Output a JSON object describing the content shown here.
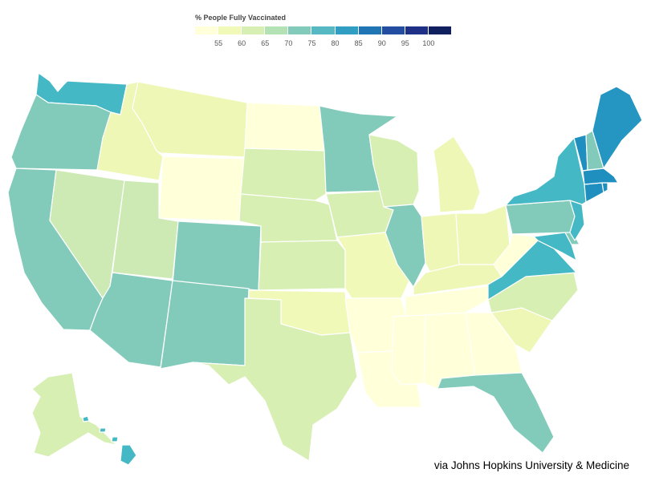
{
  "legend": {
    "title": "% People Fully Vaccinated",
    "ticks": [
      "55",
      "60",
      "65",
      "70",
      "75",
      "80",
      "85",
      "90",
      "95",
      "100"
    ],
    "color_scale": [
      "#ffffd9",
      "#f1f9b9",
      "#d7efb3",
      "#b4e2b5",
      "#82cbbb",
      "#55b8c3",
      "#2f9ec2",
      "#2076b4",
      "#234da0",
      "#1f3187",
      "#101f5e"
    ]
  },
  "credit": "via Johns Hopkins University & Medicine",
  "states": [
    {
      "name": "Washington",
      "color": "#45b8c5"
    },
    {
      "name": "Oregon",
      "color": "#82cbbb"
    },
    {
      "name": "California",
      "color": "#82cbbb"
    },
    {
      "name": "Idaho",
      "color": "#eef7b6"
    },
    {
      "name": "Nevada",
      "color": "#cde9b4"
    },
    {
      "name": "Montana",
      "color": "#eef7b6"
    },
    {
      "name": "Wyoming",
      "color": "#ffffd9"
    },
    {
      "name": "Utah",
      "color": "#cde9b4"
    },
    {
      "name": "Arizona",
      "color": "#82cbbb"
    },
    {
      "name": "Colorado",
      "color": "#82cbbb"
    },
    {
      "name": "New Mexico",
      "color": "#82cbbb"
    },
    {
      "name": "North Dakota",
      "color": "#ffffd9"
    },
    {
      "name": "South Dakota",
      "color": "#d7efb3"
    },
    {
      "name": "Nebraska",
      "color": "#d7efb3"
    },
    {
      "name": "Kansas",
      "color": "#d7efb3"
    },
    {
      "name": "Oklahoma",
      "color": "#f1f9b9"
    },
    {
      "name": "Texas",
      "color": "#d7efb3"
    },
    {
      "name": "Minnesota",
      "color": "#82cbbb"
    },
    {
      "name": "Iowa",
      "color": "#d7efb3"
    },
    {
      "name": "Missouri",
      "color": "#f1f9b9"
    },
    {
      "name": "Arkansas",
      "color": "#ffffd9"
    },
    {
      "name": "Louisiana",
      "color": "#ffffd9"
    },
    {
      "name": "Wisconsin",
      "color": "#d7efb3"
    },
    {
      "name": "Illinois",
      "color": "#82cbbb"
    },
    {
      "name": "Michigan",
      "color": "#eef7b6"
    },
    {
      "name": "Indiana",
      "color": "#eef7b6"
    },
    {
      "name": "Ohio",
      "color": "#eef7b6"
    },
    {
      "name": "Kentucky",
      "color": "#eef7b6"
    },
    {
      "name": "Tennessee",
      "color": "#ffffd9"
    },
    {
      "name": "Mississippi",
      "color": "#ffffd9"
    },
    {
      "name": "Alabama",
      "color": "#ffffd9"
    },
    {
      "name": "Georgia",
      "color": "#ffffd9"
    },
    {
      "name": "Florida",
      "color": "#82cbbb"
    },
    {
      "name": "South Carolina",
      "color": "#eef7b6"
    },
    {
      "name": "North Carolina",
      "color": "#d7efb3"
    },
    {
      "name": "Virginia",
      "color": "#45b8c5"
    },
    {
      "name": "West Virginia",
      "color": "#ffffd9"
    },
    {
      "name": "Maryland",
      "color": "#45b8c5"
    },
    {
      "name": "Delaware",
      "color": "#82cbbb"
    },
    {
      "name": "Pennsylvania",
      "color": "#82cbbb"
    },
    {
      "name": "New Jersey",
      "color": "#45b8c5"
    },
    {
      "name": "New York",
      "color": "#45b8c5"
    },
    {
      "name": "Connecticut",
      "color": "#1f8fbf"
    },
    {
      "name": "Rhode Island",
      "color": "#1f8fbf"
    },
    {
      "name": "Massachusetts",
      "color": "#1f8fbf"
    },
    {
      "name": "Vermont",
      "color": "#1f8fbf"
    },
    {
      "name": "New Hampshire",
      "color": "#82cbbb"
    },
    {
      "name": "Maine",
      "color": "#2596c2"
    },
    {
      "name": "Alaska",
      "color": "#d7efb3"
    },
    {
      "name": "Hawaii",
      "color": "#45b8c5"
    }
  ]
}
